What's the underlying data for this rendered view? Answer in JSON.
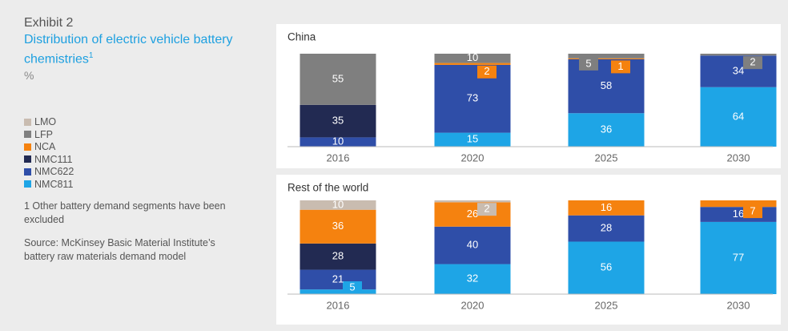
{
  "header": {
    "exhibit": "Exhibit 2",
    "title": "Distribution of electric vehicle battery chemistries",
    "title_note": "1",
    "unit": "%"
  },
  "notes": {
    "footnote": "1 Other battery demand segments have been excluded",
    "source": "Source: McKinsey Basic Material Institute’s battery raw materials demand model"
  },
  "chart_data": [
    {
      "type": "bar",
      "stacked": true,
      "title": "China",
      "categories": [
        "2016",
        "2020",
        "2025",
        "2030"
      ],
      "ylim": [
        0,
        100
      ],
      "series": [
        {
          "name": "NMC811",
          "color": "#1ea5e6",
          "values": [
            null,
            15,
            36,
            64
          ]
        },
        {
          "name": "NMC622",
          "color": "#2f4ea8",
          "values": [
            10,
            73,
            58,
            34
          ]
        },
        {
          "name": "NMC111",
          "color": "#222a52",
          "values": [
            35,
            null,
            null,
            null
          ]
        },
        {
          "name": "NCA",
          "color": "#f5820f",
          "values": [
            null,
            2,
            1,
            null
          ]
        },
        {
          "name": "LFP",
          "color": "#7f7f7f",
          "values": [
            55,
            10,
            5,
            2
          ]
        },
        {
          "name": "LMO",
          "color": "#c9bcb0",
          "values": [
            null,
            null,
            null,
            null
          ]
        }
      ]
    },
    {
      "type": "bar",
      "stacked": true,
      "title": "Rest of the world",
      "categories": [
        "2016",
        "2020",
        "2025",
        "2030"
      ],
      "ylim": [
        0,
        100
      ],
      "series": [
        {
          "name": "NMC811",
          "color": "#1ea5e6",
          "values": [
            5,
            32,
            56,
            77
          ]
        },
        {
          "name": "NMC622",
          "color": "#2f4ea8",
          "values": [
            21,
            40,
            28,
            16
          ]
        },
        {
          "name": "NMC111",
          "color": "#222a52",
          "values": [
            28,
            null,
            null,
            null
          ]
        },
        {
          "name": "NCA",
          "color": "#f5820f",
          "values": [
            36,
            26,
            16,
            7
          ]
        },
        {
          "name": "LFP",
          "color": "#7f7f7f",
          "values": [
            null,
            null,
            null,
            null
          ]
        },
        {
          "name": "LMO",
          "color": "#c9bcb0",
          "values": [
            10,
            2,
            null,
            null
          ]
        }
      ]
    }
  ]
}
